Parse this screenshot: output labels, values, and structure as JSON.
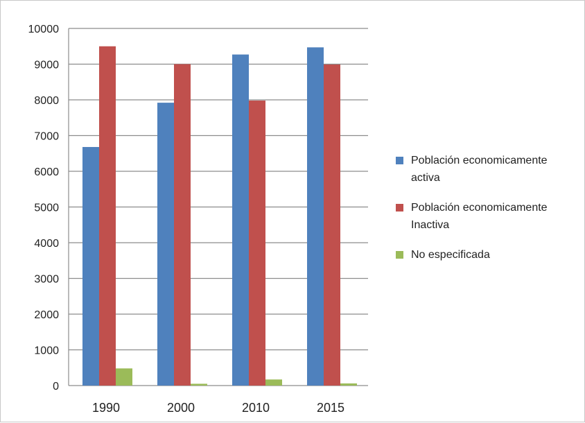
{
  "chart_data": {
    "type": "bar",
    "categories": [
      "1990",
      "2000",
      "2010",
      "2015"
    ],
    "series": [
      {
        "name": "Población economicamente activa",
        "color": "#4f81bd",
        "values": [
          6680,
          7920,
          9270,
          9470
        ]
      },
      {
        "name": "Población economicamente Inactiva",
        "color": "#c0504d",
        "values": [
          9500,
          9000,
          7980,
          8990
        ]
      },
      {
        "name": "No especificada",
        "color": "#9bbb59",
        "values": [
          480,
          50,
          170,
          60
        ]
      }
    ],
    "ylim": [
      0,
      10000
    ],
    "yticks": [
      0,
      1000,
      2000,
      3000,
      4000,
      5000,
      6000,
      7000,
      8000,
      9000,
      10000
    ],
    "grid": true,
    "legend_position": "right"
  },
  "legend": {
    "items": [
      {
        "line1": "Población economicamente",
        "line2": "activa",
        "color": "#4f81bd"
      },
      {
        "line1": "Población economicamente",
        "line2": "Inactiva",
        "color": "#c0504d"
      },
      {
        "line1": "No especificada",
        "line2": "",
        "color": "#9bbb59"
      }
    ]
  }
}
